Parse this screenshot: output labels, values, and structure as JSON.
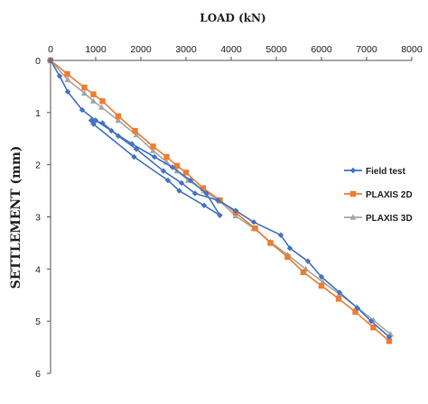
{
  "chart_data": {
    "type": "line",
    "title": "LOAD (kN)",
    "xlabel": "LOAD (kN)",
    "ylabel": "SETTLEMENT (mm)",
    "x_axis_position": "top",
    "y_inverted": true,
    "xlim": [
      0,
      8000
    ],
    "ylim": [
      0,
      6
    ],
    "x_ticks": [
      "0",
      "1000",
      "2000",
      "3000",
      "4000",
      "5000",
      "6000",
      "7000",
      "8000"
    ],
    "y_ticks": [
      "0",
      "1",
      "2",
      "3",
      "4",
      "5",
      "6"
    ],
    "grid": false,
    "legend_position": "right",
    "series": [
      {
        "name": "Field test",
        "color": "#4472C4",
        "marker": "diamond",
        "points": [
          [
            0,
            0
          ],
          [
            200,
            0.3
          ],
          [
            380,
            0.6
          ],
          [
            700,
            0.95
          ],
          [
            1000,
            1.15
          ],
          [
            1350,
            1.35
          ],
          [
            1800,
            1.6
          ],
          [
            2300,
            1.85
          ],
          [
            2700,
            2.05
          ],
          [
            3100,
            2.3
          ],
          [
            3450,
            2.55
          ],
          [
            3750,
            2.97
          ],
          [
            3400,
            2.78
          ],
          [
            2850,
            2.5
          ],
          [
            2600,
            2.3
          ],
          [
            1850,
            1.85
          ],
          [
            950,
            1.22
          ],
          [
            900,
            1.15
          ],
          [
            1150,
            1.2
          ],
          [
            1500,
            1.45
          ],
          [
            1900,
            1.7
          ],
          [
            2500,
            2.12
          ],
          [
            2900,
            2.35
          ],
          [
            3200,
            2.55
          ],
          [
            3700,
            2.68
          ],
          [
            4100,
            2.88
          ],
          [
            4500,
            3.1
          ],
          [
            5100,
            3.35
          ],
          [
            5300,
            3.6
          ],
          [
            5700,
            3.85
          ],
          [
            6000,
            4.15
          ],
          [
            6400,
            4.45
          ],
          [
            6800,
            4.75
          ],
          [
            7100,
            5.0
          ],
          [
            7500,
            5.3
          ]
        ]
      },
      {
        "name": "PLAXIS 2D",
        "color": "#ED7D31",
        "marker": "square",
        "points": [
          [
            0,
            0
          ],
          [
            370,
            0.26
          ],
          [
            750,
            0.52
          ],
          [
            950,
            0.65
          ],
          [
            1150,
            0.78
          ],
          [
            1500,
            1.07
          ],
          [
            1870,
            1.35
          ],
          [
            2270,
            1.65
          ],
          [
            2570,
            1.85
          ],
          [
            2800,
            2.02
          ],
          [
            3000,
            2.15
          ],
          [
            3380,
            2.45
          ],
          [
            3750,
            2.68
          ],
          [
            4100,
            2.92
          ],
          [
            4530,
            3.22
          ],
          [
            4870,
            3.5
          ],
          [
            5250,
            3.77
          ],
          [
            5600,
            4.06
          ],
          [
            6000,
            4.32
          ],
          [
            6380,
            4.57
          ],
          [
            6750,
            4.82
          ],
          [
            7150,
            5.12
          ],
          [
            7500,
            5.38
          ]
        ]
      },
      {
        "name": "PLAXIS 3D",
        "color": "#A5A5A5",
        "marker": "triangle",
        "points": [
          [
            0,
            0
          ],
          [
            380,
            0.37
          ],
          [
            750,
            0.63
          ],
          [
            950,
            0.78
          ],
          [
            1130,
            0.9
          ],
          [
            1500,
            1.15
          ],
          [
            1900,
            1.43
          ],
          [
            2270,
            1.73
          ],
          [
            2570,
            1.95
          ],
          [
            2800,
            2.12
          ],
          [
            3050,
            2.3
          ],
          [
            3400,
            2.5
          ],
          [
            3750,
            2.7
          ],
          [
            4100,
            2.98
          ],
          [
            4500,
            3.22
          ],
          [
            4870,
            3.48
          ],
          [
            5250,
            3.73
          ],
          [
            5650,
            4.0
          ],
          [
            6030,
            4.25
          ],
          [
            6400,
            4.48
          ],
          [
            6780,
            4.73
          ],
          [
            7150,
            4.98
          ],
          [
            7530,
            5.25
          ]
        ]
      }
    ]
  }
}
